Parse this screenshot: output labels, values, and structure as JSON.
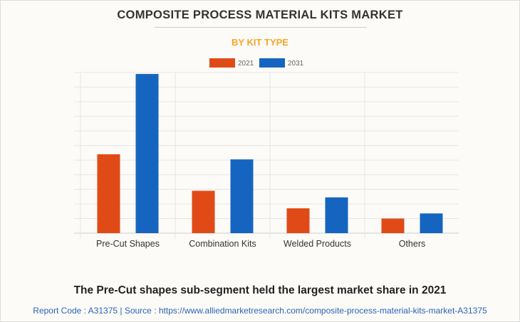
{
  "title": "COMPOSITE PROCESS MATERIAL KITS MARKET",
  "subtitle": "BY KIT TYPE",
  "caption": "The Pre-Cut shapes sub-segment held the largest market share in 2021",
  "source": "Report Code : A31375  |  Source : https://www.alliedmarketresearch.com/composite-process-material-kits-market-A31375",
  "chart_data": {
    "type": "bar",
    "categories": [
      "Pre-Cut Shapes",
      "Combination Kits",
      "Welded Products",
      "Others"
    ],
    "series": [
      {
        "name": "2021",
        "color": "#e04a17",
        "values": [
          5.4,
          2.9,
          1.7,
          1.0
        ]
      },
      {
        "name": "2031",
        "color": "#1565c0",
        "values": [
          10.9,
          5.05,
          2.45,
          1.35
        ]
      }
    ],
    "ylim": [
      0,
      11
    ],
    "grid": true,
    "legend": "top-center",
    "xlabel": "",
    "ylabel": ""
  }
}
